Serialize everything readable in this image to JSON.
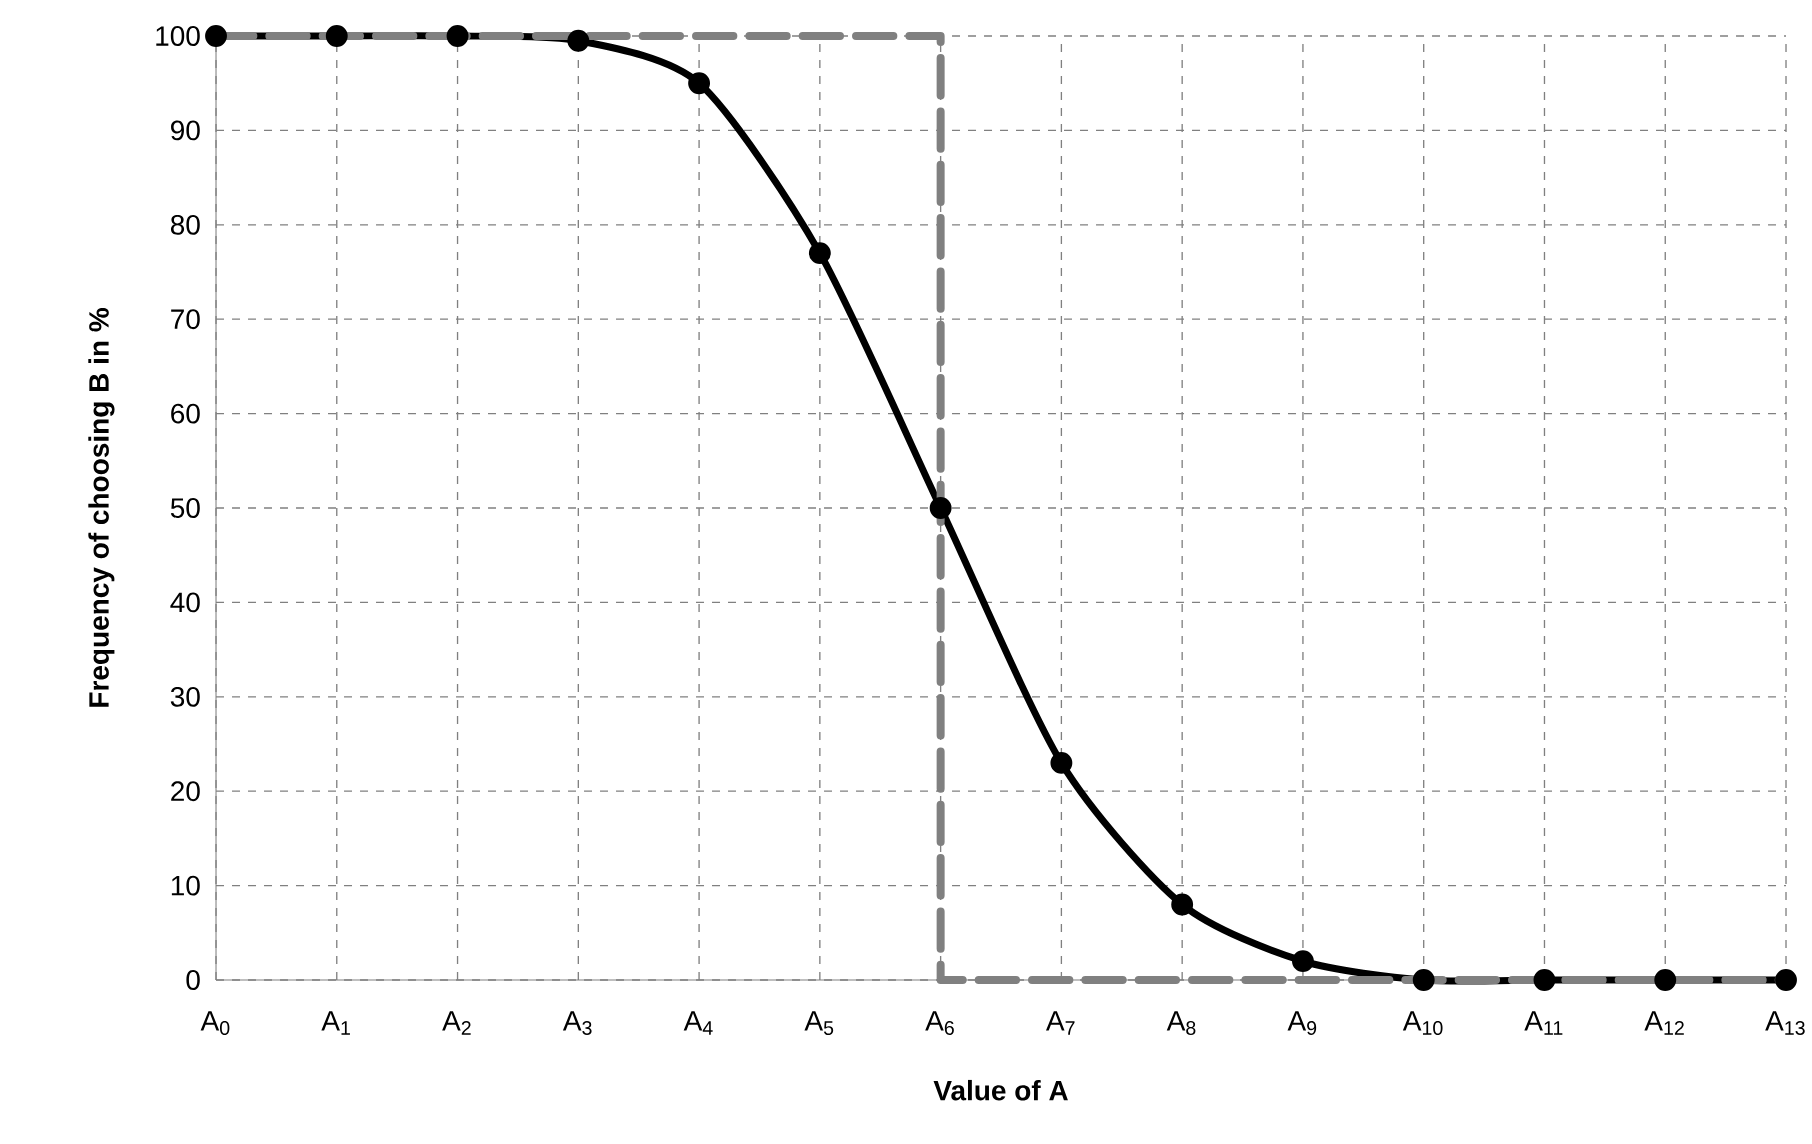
{
  "chart_data": {
    "type": "line",
    "xlabel": "Value of A",
    "ylabel": "Frequency of choosing B in %",
    "categories": [
      "A$_{0}$",
      "A$_{1}$",
      "A$_{2}$",
      "A$_{3}$",
      "A$_{4}$",
      "A$_{5}$",
      "A$_{6}$",
      "A$_{7}$",
      "A$_{8}$",
      "A$_{9}$",
      "A$_{10}$",
      "A$_{11}$",
      "A$_{12}$",
      "A$_{13}$"
    ],
    "series": [
      {
        "color": "#000000",
        "marker": "circle",
        "line_style": "solid",
        "values": [
          100,
          100,
          100,
          99.5,
          95,
          77,
          50,
          23,
          8,
          2,
          0,
          0,
          0,
          0
        ]
      },
      {
        "type": "step",
        "color": "#808080",
        "marker": "none",
        "line_style": "dashed",
        "values": [
          100,
          100,
          100,
          100,
          100,
          100,
          0,
          0,
          0,
          0,
          0,
          0,
          0,
          0
        ]
      }
    ],
    "ylim": [
      0,
      100
    ],
    "yticks": [
      0,
      10,
      20,
      30,
      40,
      50,
      60,
      70,
      80,
      90,
      100
    ],
    "grid": true
  }
}
